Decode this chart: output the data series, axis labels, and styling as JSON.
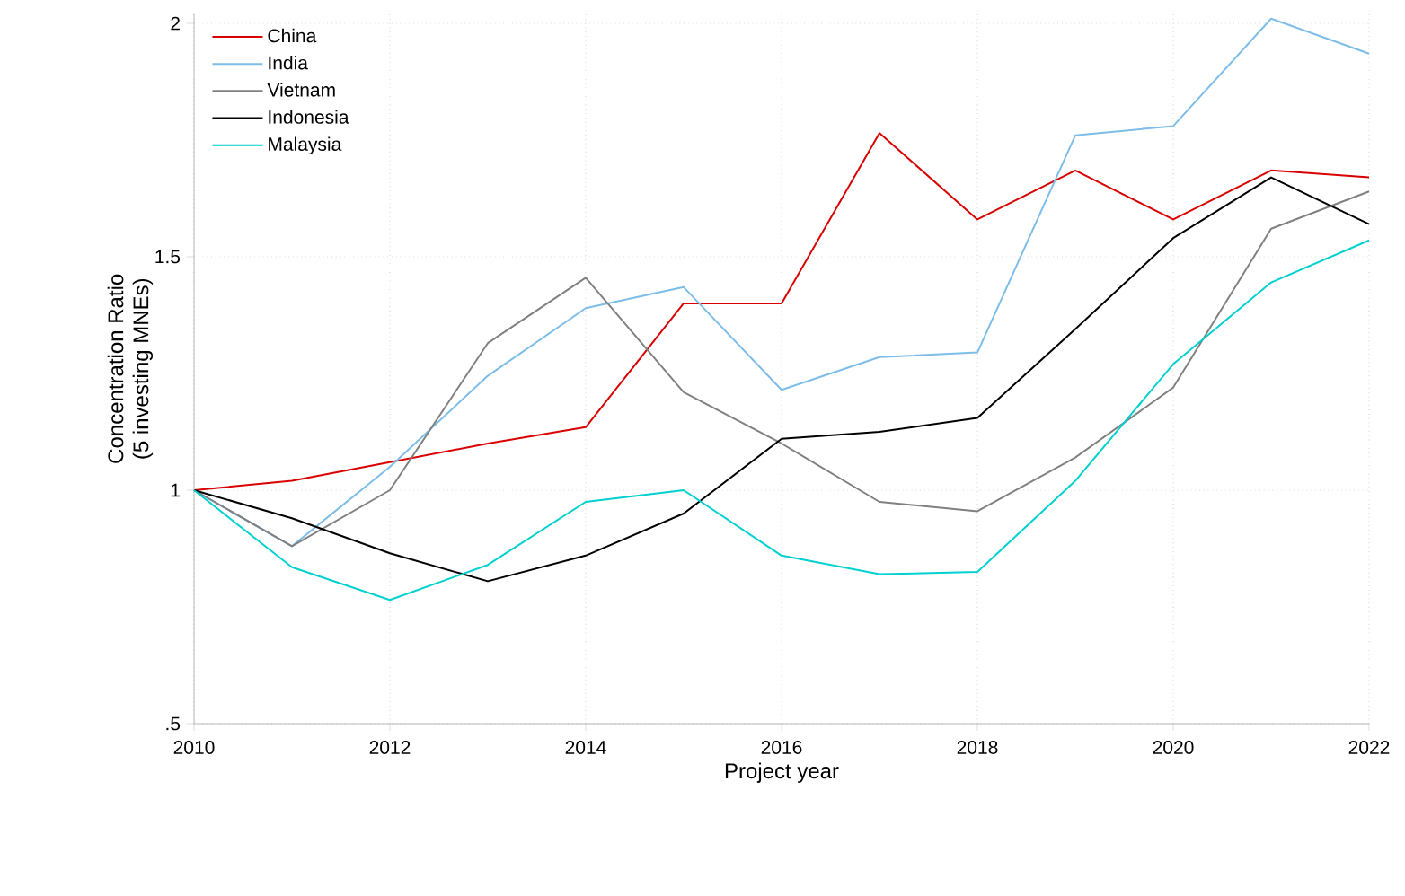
{
  "chart_data": {
    "type": "line",
    "xlabel": "Project year",
    "ylabel": "Concentration Ratio\n(5 investing MNEs)",
    "x": [
      2010,
      2011,
      2012,
      2013,
      2014,
      2015,
      2016,
      2017,
      2018,
      2019,
      2020,
      2021,
      2022
    ],
    "series": [
      {
        "name": "China",
        "color": "#d90000",
        "values": [
          1.0,
          1.02,
          1.06,
          1.1,
          1.135,
          1.4,
          1.4,
          1.765,
          1.58,
          1.685,
          1.58,
          1.685,
          1.67
        ]
      },
      {
        "name": "India",
        "color": "#7dbde8",
        "values": [
          1.0,
          0.88,
          1.05,
          1.245,
          1.39,
          1.435,
          1.215,
          1.285,
          1.295,
          1.76,
          1.78,
          2.01,
          1.935
        ]
      },
      {
        "name": "Vietnam",
        "color": "#808080",
        "values": [
          1.0,
          0.88,
          1.0,
          1.315,
          1.455,
          1.21,
          1.1,
          0.975,
          0.955,
          1.07,
          1.22,
          1.56,
          1.64
        ]
      },
      {
        "name": "Indonesia",
        "color": "#000000",
        "values": [
          1.0,
          0.94,
          0.865,
          0.805,
          0.86,
          0.95,
          1.11,
          1.125,
          1.155,
          1.345,
          1.54,
          1.67,
          1.57
        ]
      },
      {
        "name": "Malaysia",
        "color": "#00d0d0",
        "values": [
          1.0,
          0.835,
          0.765,
          0.84,
          0.975,
          1.0,
          0.86,
          0.82,
          0.825,
          1.02,
          1.27,
          1.445,
          1.535
        ]
      }
    ],
    "xlim": [
      2010,
      2022
    ],
    "xticks": [
      2010,
      2012,
      2014,
      2016,
      2018,
      2020,
      2022
    ],
    "ylim": [
      0.5,
      2.02
    ],
    "yticks": [
      {
        "value": 0.5,
        "label": ".5"
      },
      1,
      1.5,
      2
    ],
    "grid": true,
    "legend": "top left",
    "marker": "none",
    "line_style": "solid"
  }
}
